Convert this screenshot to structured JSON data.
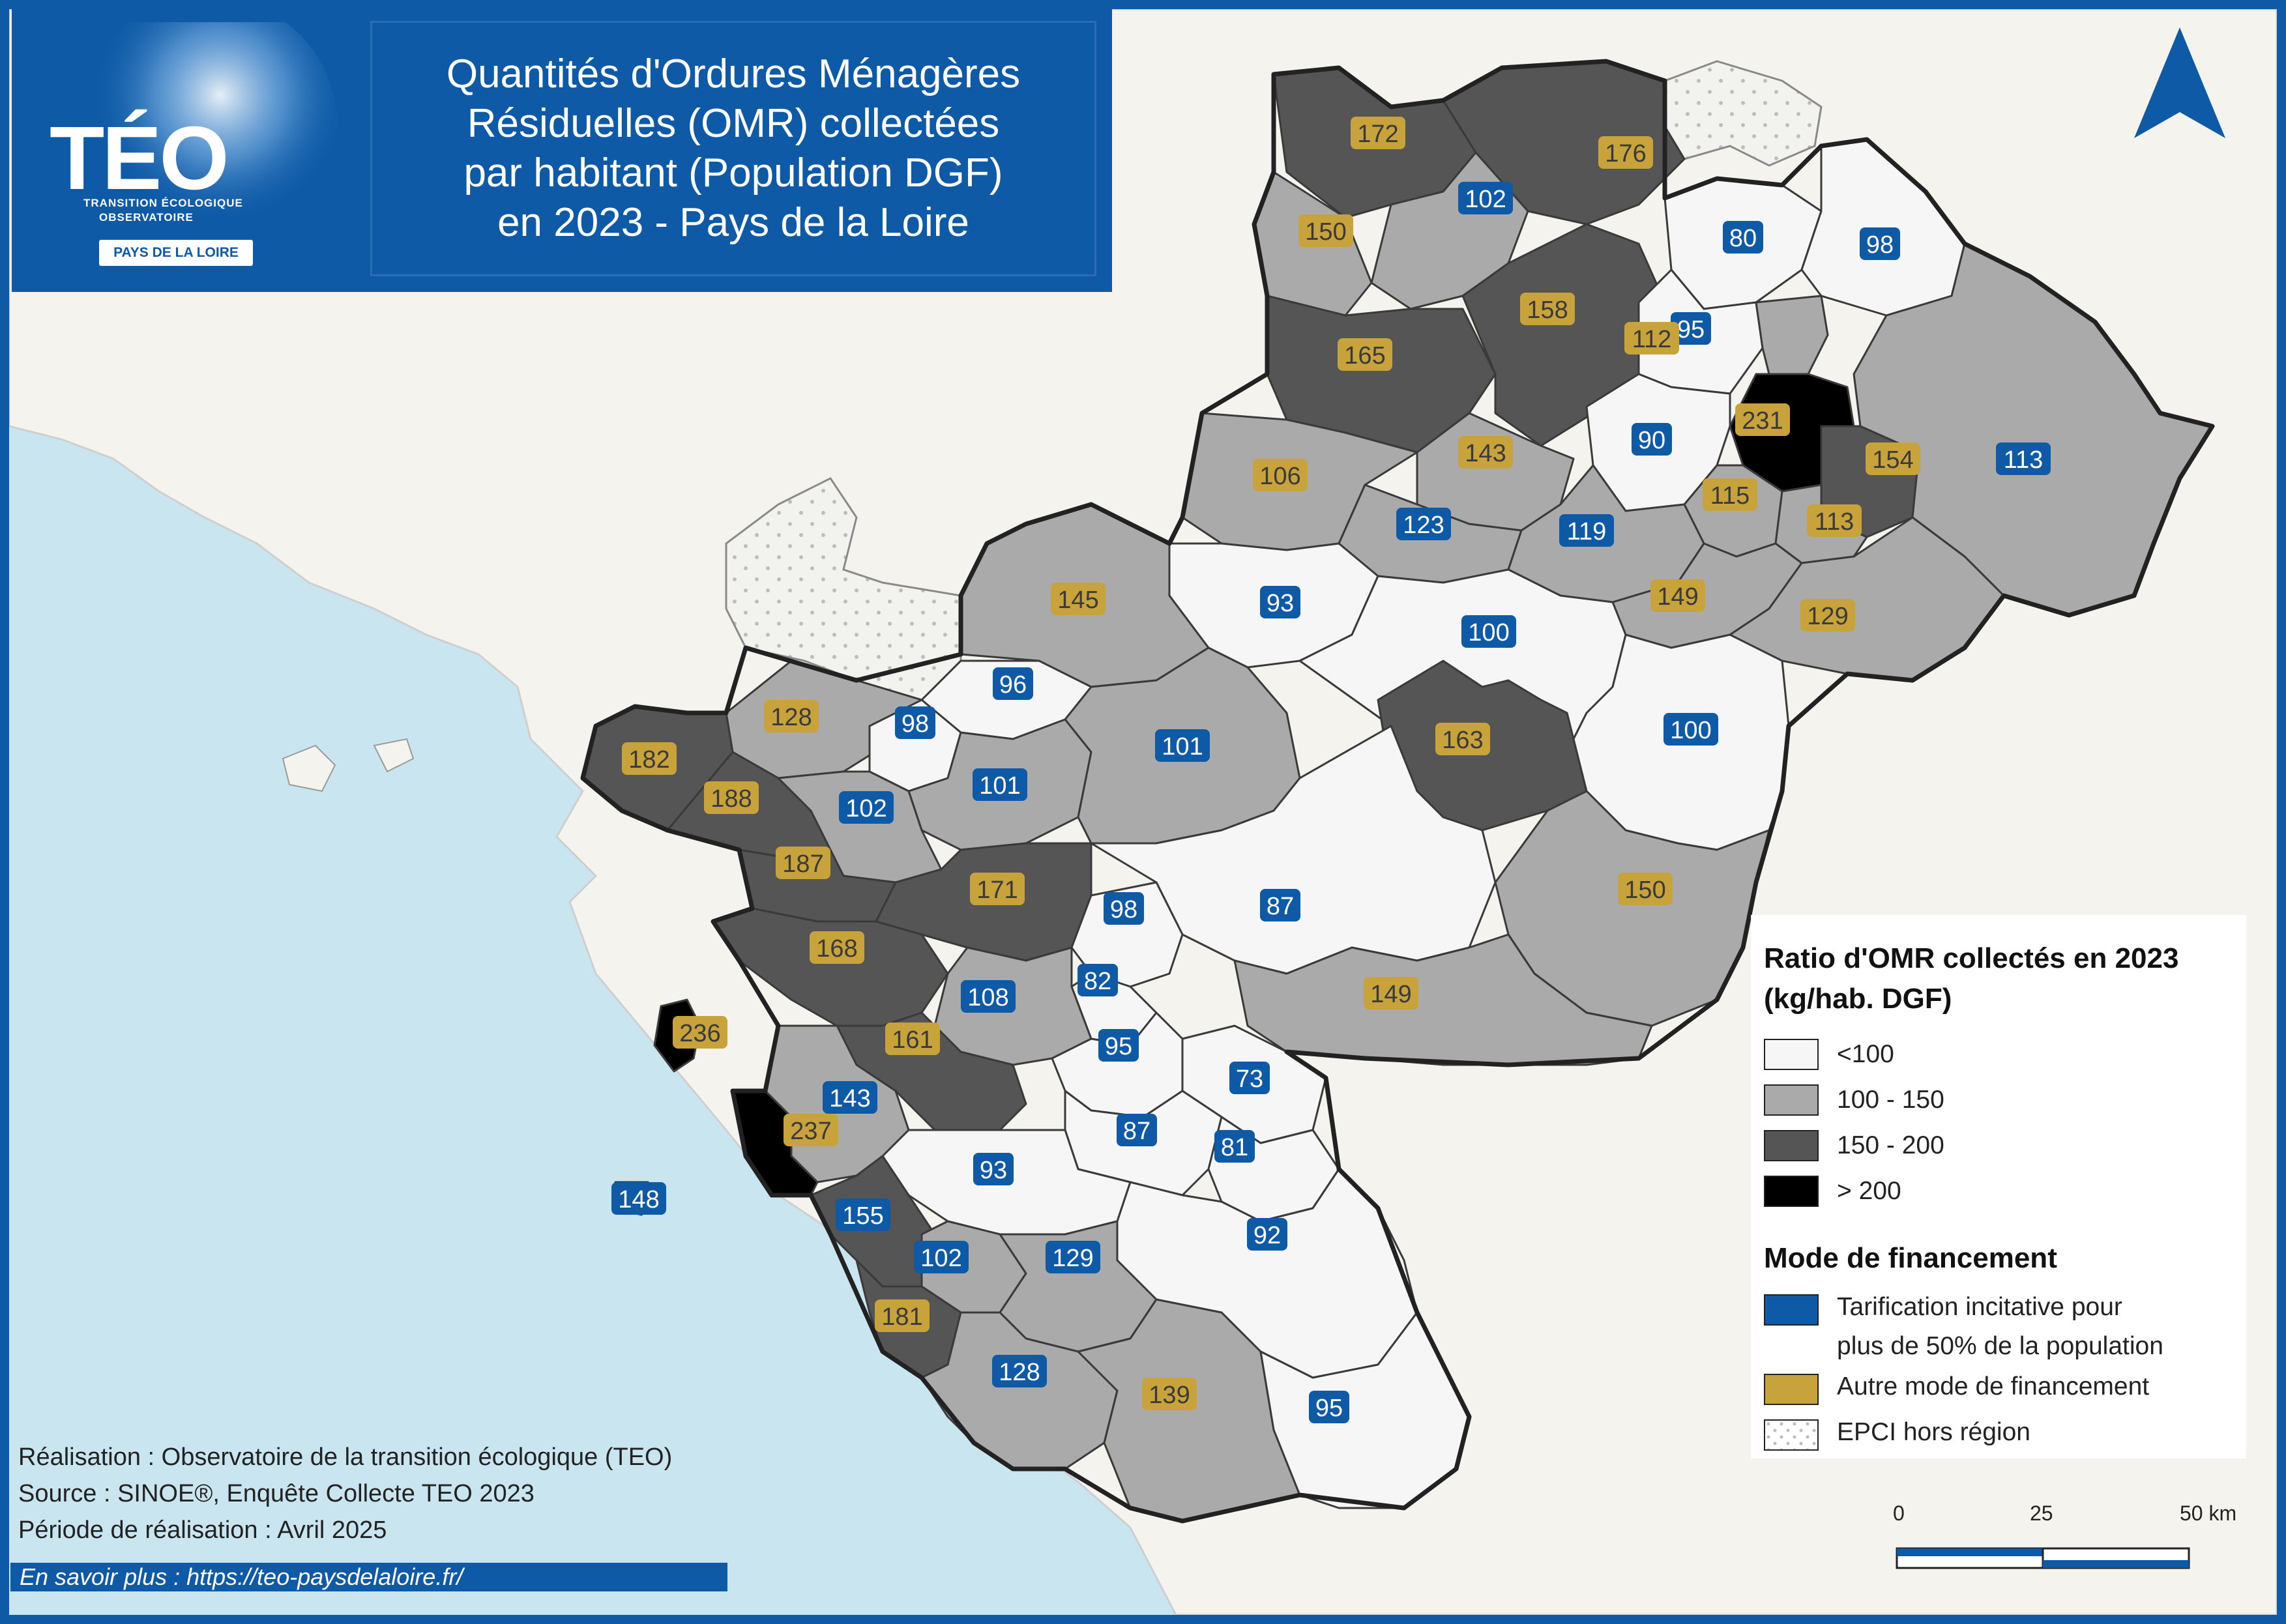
{
  "title": "Quantités d'Ordures Ménagères\nRésiduelles (OMR) collectées\npar habitant (Population DGF)\nen 2023 - Pays de la Loire",
  "logo": {
    "name": "TÉO",
    "subtitle_1": "TRANSITION ÉCOLOGIQUE",
    "subtitle_2": "OBSERVATOIRE",
    "region": "PAYS DE LA LOIRE"
  },
  "legend": {
    "ratio_title_1": "Ratio d'OMR collectés en 2023",
    "ratio_title_2": "(kg/hab. DGF)",
    "classes": [
      {
        "label": "<100",
        "color": "#f6f6f6"
      },
      {
        "label": "100 - 150",
        "color": "#aaaaaa"
      },
      {
        "label": "150 - 200",
        "color": "#555555"
      },
      {
        "label": "> 200",
        "color": "#000000"
      }
    ],
    "financing_title": "Mode de financement",
    "financing": [
      {
        "label_1": "Tarification incitative pour",
        "label_2": "plus de 50% de la population",
        "color": "#0e5aa7"
      },
      {
        "label_1": "Autre mode de financement",
        "color": "#c8a33b"
      },
      {
        "label_1": "EPCI hors région",
        "color": "#ffffff"
      }
    ]
  },
  "credits": {
    "line_1": "Réalisation : Observatoire de la transition écologique (TEO)",
    "line_2": "Source : SINOE®, Enquête Collecte TEO 2023",
    "line_3": "Période de réalisation : Avril 2025"
  },
  "more_info": "En savoir plus : https://teo-paysdelaloire.fr/",
  "scale": {
    "ticks": [
      "0",
      "25",
      "50 km"
    ]
  },
  "epci": [
    {
      "value": "172",
      "financing": "other",
      "class": "150-200"
    },
    {
      "value": "176",
      "financing": "other",
      "class": "150-200"
    },
    {
      "value": "102",
      "financing": "incitative",
      "class": "100-150"
    },
    {
      "value": "150",
      "financing": "other",
      "class": "100-150"
    },
    {
      "value": "80",
      "financing": "incitative",
      "class": "<100"
    },
    {
      "value": "98",
      "financing": "incitative",
      "class": "<100"
    },
    {
      "value": "158",
      "financing": "other",
      "class": "150-200"
    },
    {
      "value": "165",
      "financing": "other",
      "class": "150-200"
    },
    {
      "value": "95",
      "financing": "incitative",
      "class": "<100"
    },
    {
      "value": "112",
      "financing": "other",
      "class": "100-150"
    },
    {
      "value": "231",
      "financing": "other",
      "class": ">200"
    },
    {
      "value": "90",
      "financing": "incitative",
      "class": "<100"
    },
    {
      "value": "154",
      "financing": "other",
      "class": "150-200"
    },
    {
      "value": "113",
      "financing": "incitative",
      "class": "100-150"
    },
    {
      "value": "143",
      "financing": "other",
      "class": "100-150"
    },
    {
      "value": "106",
      "financing": "other",
      "class": "100-150"
    },
    {
      "value": "115",
      "financing": "other",
      "class": "100-150"
    },
    {
      "value": "113",
      "financing": "other",
      "class": "100-150"
    },
    {
      "value": "123",
      "financing": "incitative",
      "class": "100-150"
    },
    {
      "value": "119",
      "financing": "incitative",
      "class": "100-150"
    },
    {
      "value": "149",
      "financing": "other",
      "class": "100-150"
    },
    {
      "value": "129",
      "financing": "other",
      "class": "100-150"
    },
    {
      "value": "93",
      "financing": "incitative",
      "class": "<100"
    },
    {
      "value": "145",
      "financing": "other",
      "class": "100-150"
    },
    {
      "value": "100",
      "financing": "incitative",
      "class": "<100"
    },
    {
      "value": "96",
      "financing": "incitative",
      "class": "<100"
    },
    {
      "value": "163",
      "financing": "other",
      "class": "150-200"
    },
    {
      "value": "128",
      "financing": "other",
      "class": "100-150"
    },
    {
      "value": "98",
      "financing": "incitative",
      "class": "<100"
    },
    {
      "value": "101",
      "financing": "incitative",
      "class": "100-150"
    },
    {
      "value": "100",
      "financing": "incitative",
      "class": "<100"
    },
    {
      "value": "182",
      "financing": "other",
      "class": "150-200"
    },
    {
      "value": "101",
      "financing": "incitative",
      "class": "100-150"
    },
    {
      "value": "188",
      "financing": "other",
      "class": "150-200"
    },
    {
      "value": "102",
      "financing": "incitative",
      "class": "100-150"
    },
    {
      "value": "187",
      "financing": "other",
      "class": "150-200"
    },
    {
      "value": "171",
      "financing": "other",
      "class": "150-200"
    },
    {
      "value": "150",
      "financing": "other",
      "class": "100-150"
    },
    {
      "value": "98",
      "financing": "incitative",
      "class": "<100"
    },
    {
      "value": "87",
      "financing": "incitative",
      "class": "<100"
    },
    {
      "value": "168",
      "financing": "other",
      "class": "150-200"
    },
    {
      "value": "149",
      "financing": "other",
      "class": "100-150"
    },
    {
      "value": "82",
      "financing": "incitative",
      "class": "<100"
    },
    {
      "value": "108",
      "financing": "incitative",
      "class": "100-150"
    },
    {
      "value": "236",
      "financing": "other",
      "class": ">200"
    },
    {
      "value": "161",
      "financing": "other",
      "class": "150-200"
    },
    {
      "value": "95",
      "financing": "incitative",
      "class": "<100"
    },
    {
      "value": "73",
      "financing": "incitative",
      "class": "<100"
    },
    {
      "value": "143",
      "financing": "incitative",
      "class": "100-150"
    },
    {
      "value": "237",
      "financing": "other",
      "class": ">200"
    },
    {
      "value": "87",
      "financing": "incitative",
      "class": "<100"
    },
    {
      "value": "81",
      "financing": "incitative",
      "class": "<100"
    },
    {
      "value": "93",
      "financing": "incitative",
      "class": "<100"
    },
    {
      "value": "148",
      "financing": "incitative",
      "class": "100-150"
    },
    {
      "value": "155",
      "financing": "incitative",
      "class": "150-200"
    },
    {
      "value": "92",
      "financing": "incitative",
      "class": "<100"
    },
    {
      "value": "102",
      "financing": "incitative",
      "class": "100-150"
    },
    {
      "value": "129",
      "financing": "incitative",
      "class": "100-150"
    },
    {
      "value": "181",
      "financing": "other",
      "class": "150-200"
    },
    {
      "value": "128",
      "financing": "incitative",
      "class": "100-150"
    },
    {
      "value": "139",
      "financing": "other",
      "class": "100-150"
    },
    {
      "value": "95",
      "financing": "incitative",
      "class": "<100"
    }
  ]
}
